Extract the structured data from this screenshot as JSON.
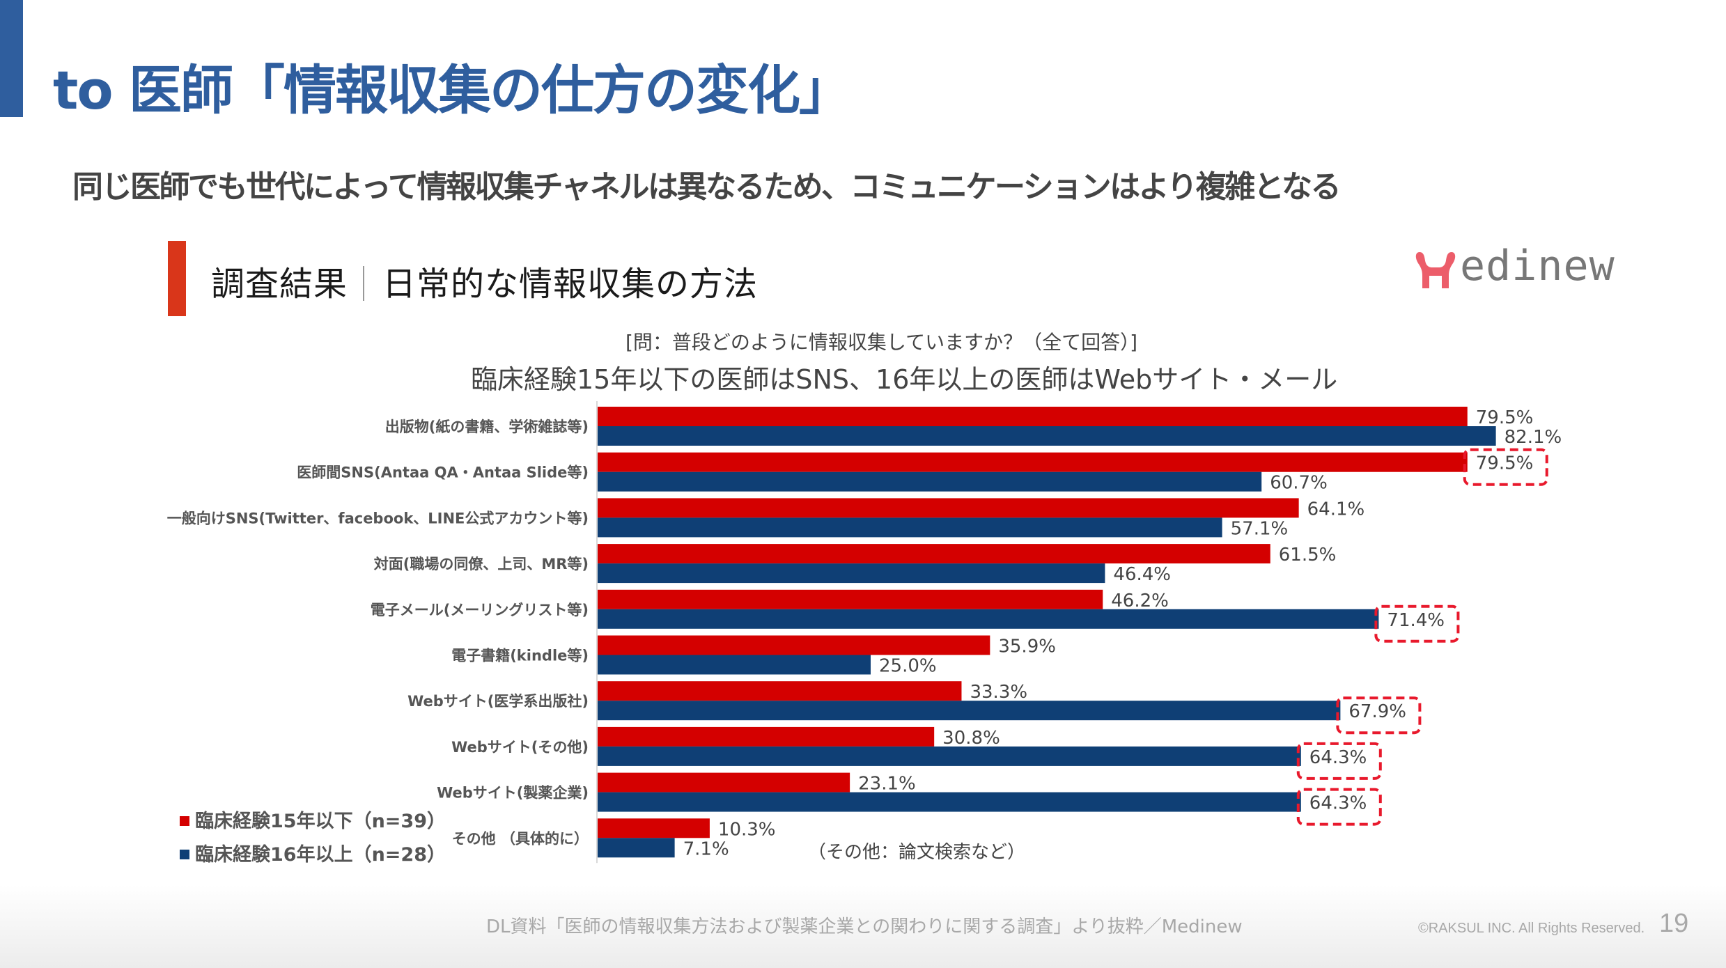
{
  "slide": {
    "title": "to 医師「情報収集の仕方の変化」",
    "subtitle": "同じ医師でも世代によって情報収集チャネルは異なるため、コミュニケーションはより複雑となる",
    "footer_source": "DL資料「医師の情報収集方法および製薬企業との関わりに関する調査」より抜粋／Medinew",
    "copyright": "©RAKSUL INC. All Rights Reserved.",
    "page_number": "19"
  },
  "chart_header": {
    "label": "調査結果",
    "title": "日常的な情報収集の方法",
    "logo_text": "edinew",
    "logo_name": "Medinew"
  },
  "chart_data": {
    "type": "bar",
    "orientation": "horizontal",
    "title": "臨床経験15年以下の医師はSNS、16年以上の医師はWebサイト・メール",
    "subtitle": "[問：普段どのように情報収集していますか？（全て回答）]",
    "xlabel": "",
    "ylabel": "",
    "unit": "%",
    "xlim": [
      0,
      100
    ],
    "grid": false,
    "legend_position": "bottom-left",
    "categories": [
      "出版物(紙の書籍、学術雑誌等)",
      "医師間SNS(Antaa QA・Antaa Slide等)",
      "一般向けSNS(Twitter、facebook、LINE公式アカウント等)",
      "対面(職場の同僚、上司、MR等)",
      "電子メール(メーリングリスト等)",
      "電子書籍(kindle等)",
      "Webサイト(医学系出版社)",
      "Webサイト(その他)",
      "Webサイト(製薬企業)",
      "その他 （具体的に）"
    ],
    "series": [
      {
        "name": "臨床経験15年以下（n=39）",
        "color": "#d40000",
        "values": [
          79.5,
          79.5,
          64.1,
          61.5,
          46.2,
          35.9,
          33.3,
          30.8,
          23.1,
          10.3
        ],
        "labels": [
          "79.5%",
          "79.5%",
          "64.1%",
          "61.5%",
          "46.2%",
          "35.9%",
          "33.3%",
          "30.8%",
          "23.1%",
          "10.3%"
        ],
        "highlighted": [
          false,
          true,
          false,
          false,
          false,
          false,
          false,
          false,
          false,
          false
        ]
      },
      {
        "name": "臨床経験16年以上（n=28）",
        "color": "#0f3f75",
        "values": [
          82.1,
          60.7,
          57.1,
          46.4,
          71.4,
          25.0,
          67.9,
          64.3,
          64.3,
          7.1
        ],
        "labels": [
          "82.1%",
          "60.7%",
          "57.1%",
          "46.4%",
          "71.4%",
          "25.0%",
          "67.9%",
          "64.3%",
          "64.3%",
          "7.1%"
        ],
        "highlighted": [
          false,
          false,
          false,
          false,
          true,
          false,
          true,
          true,
          true,
          false
        ]
      }
    ],
    "annotations": [
      {
        "category": "その他 （具体的に）",
        "text": "（その他：論文検索など）"
      }
    ],
    "highlight_color": "#e8192c"
  }
}
